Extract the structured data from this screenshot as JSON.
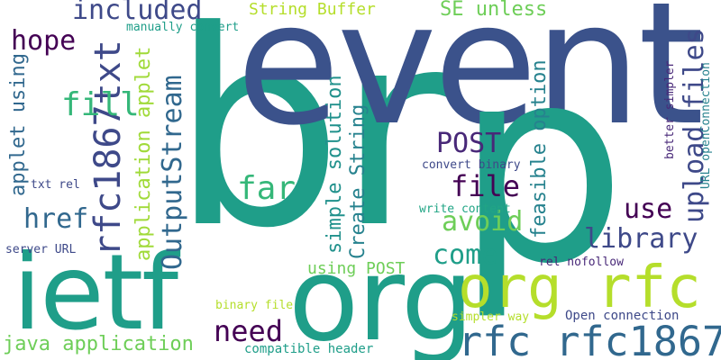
{
  "words": [
    {
      "text": "br",
      "color": "#1f9e89"
    },
    {
      "text": "event",
      "color": "#3b528b"
    },
    {
      "text": "p",
      "color": "#1f9e89"
    },
    {
      "text": "ietf",
      "color": "#1f9e89"
    },
    {
      "text": "org",
      "color": "#1f9e89"
    },
    {
      "text": "org rfc",
      "color": "#b5de2b"
    },
    {
      "text": "rfc rfc1867",
      "color": "#31688e"
    },
    {
      "text": "included",
      "color": "#3e4989"
    },
    {
      "text": "String Buffer",
      "color": "#b5de2b"
    },
    {
      "text": "SE unless",
      "color": "#6ece58"
    },
    {
      "text": "hope",
      "color": "#440154"
    },
    {
      "text": "manually convert",
      "color": "#1f9e89"
    },
    {
      "text": "rfc1867txt",
      "color": "#3e4989"
    },
    {
      "text": "fill",
      "color": "#35b779"
    },
    {
      "text": "applet using",
      "color": "#31688e"
    },
    {
      "text": "application applet",
      "color": "#a0da39"
    },
    {
      "text": "OutputStream",
      "color": "#31688e"
    },
    {
      "text": "simple solution",
      "color": "#21918c"
    },
    {
      "text": "Create String",
      "color": "#26828e"
    },
    {
      "text": "POST",
      "color": "#482878"
    },
    {
      "text": "feasible option",
      "color": "#26828e"
    },
    {
      "text": "upload files",
      "color": "#3e4989"
    },
    {
      "text": "file",
      "color": "#440154"
    },
    {
      "text": "far",
      "color": "#35b779"
    },
    {
      "text": "convert binary",
      "color": "#3e4989"
    },
    {
      "text": "better simpler",
      "color": "#482878"
    },
    {
      "text": "URL openConnection",
      "color": "#26828e"
    },
    {
      "text": "href",
      "color": "#31688e"
    },
    {
      "text": "avoid",
      "color": "#6ece58"
    },
    {
      "text": "use",
      "color": "#440154"
    },
    {
      "text": "txt rel",
      "color": "#3e4989"
    },
    {
      "text": "write content",
      "color": "#21a585"
    },
    {
      "text": "library",
      "color": "#3e4989"
    },
    {
      "text": "come",
      "color": "#1f9e89"
    },
    {
      "text": "server URL",
      "color": "#3e4989"
    },
    {
      "text": "using POST",
      "color": "#6ece58"
    },
    {
      "text": "rel nofollow",
      "color": "#482878"
    },
    {
      "text": "binary file",
      "color": "#b5de2b"
    },
    {
      "text": "need",
      "color": "#440154"
    },
    {
      "text": "simpler way",
      "color": "#b5de2b"
    },
    {
      "text": "Open connection",
      "color": "#3e4989"
    },
    {
      "text": "java application",
      "color": "#6ece58"
    },
    {
      "text": "compatible header",
      "color": "#1f9e89"
    }
  ]
}
